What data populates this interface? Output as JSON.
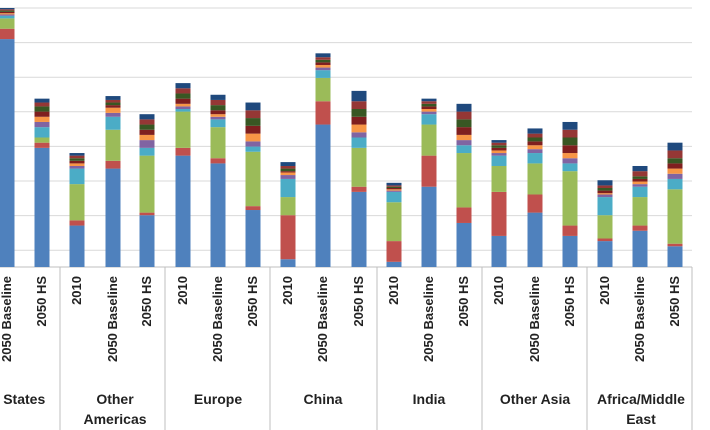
{
  "chart_data": {
    "type": "bar",
    "stacked": true,
    "title": "",
    "xlabel": "",
    "ylabel": "",
    "ylim": [
      0,
      100
    ],
    "grid": true,
    "legend": "none",
    "region_labels": [
      "d States",
      "Other Americas",
      "Europe",
      "China",
      "India",
      "Other Asia",
      "Africa/Middle East"
    ],
    "series_colors": [
      "#4f81bd",
      "#c0504d",
      "#9bbb59",
      "#4bacc6",
      "#8064a2",
      "#f79646",
      "#7f1f1f",
      "#385723",
      "#953735",
      "#1f497d"
    ],
    "groups": [
      {
        "region": "d States",
        "bars": [
          {
            "label": "2050 Baseline",
            "values": [
              88,
              4,
              4,
              1,
              0.5,
              0.5,
              0.5,
              0.5,
              0.5,
              0.5
            ]
          },
          {
            "label": "2050 HS",
            "values": [
              46,
              2,
              2,
              4,
              2,
              2,
              2,
              2,
              1.5,
              1.5
            ]
          }
        ]
      },
      {
        "region": "Other Americas",
        "bars": [
          {
            "label": "2010",
            "values": [
              16,
              2,
              14,
              6,
              1,
              1,
              1,
              1,
              1,
              1
            ]
          },
          {
            "label": "2050 Baseline",
            "values": [
              38,
              3,
              12,
              5,
              1.5,
              2,
              1,
              1,
              1,
              1.5
            ]
          },
          {
            "label": "2050 HS",
            "values": [
              20,
              1,
              22,
              3,
              3,
              2,
              2,
              2,
              2,
              2
            ]
          }
        ]
      },
      {
        "region": "Europe",
        "bars": [
          {
            "label": "2010",
            "values": [
              43,
              3,
              14,
              1,
              1,
              1,
              2,
              2,
              2,
              2
            ]
          },
          {
            "label": "2050 Baseline",
            "values": [
              40,
              2,
              12,
              3,
              1,
              1,
              1.5,
              2,
              2,
              2
            ]
          },
          {
            "label": "2050 HS",
            "values": [
              22,
              1.5,
              21,
              2,
              2,
              3,
              3,
              3,
              3,
              3
            ]
          }
        ]
      },
      {
        "region": "China",
        "bars": [
          {
            "label": "2010",
            "values": [
              3,
              17,
              7,
              7,
              1.5,
              1,
              0.5,
              1,
              1,
              1.5
            ]
          },
          {
            "label": "2050 Baseline",
            "values": [
              55,
              9,
              9,
              3,
              1,
              1,
              1,
              1,
              1,
              1.5
            ]
          },
          {
            "label": "2050 HS",
            "values": [
              29,
              2,
              15,
              4,
              2,
              3,
              3,
              3,
              3,
              4
            ]
          }
        ]
      },
      {
        "region": "India",
        "bars": [
          {
            "label": "2010",
            "values": [
              2,
              8,
              15,
              4,
              0.5,
              0.5,
              0.5,
              0.5,
              0.5,
              1
            ]
          },
          {
            "label": "2050 Baseline",
            "values": [
              31,
              12,
              12,
              4,
              1,
              1,
              1,
              1,
              1,
              1
            ]
          },
          {
            "label": "2050 HS",
            "values": [
              17,
              6,
              21,
              3,
              2,
              2,
              3,
              3,
              3,
              3
            ]
          }
        ]
      },
      {
        "region": "Other Asia",
        "bars": [
          {
            "label": "2010",
            "values": [
              12,
              17,
              10,
              4,
              1,
              1,
              1,
              1,
              1,
              1
            ]
          },
          {
            "label": "2050 Baseline",
            "values": [
              21,
              7,
              12,
              4,
              1.5,
              1.5,
              1.5,
              1.5,
              1.5,
              2
            ]
          },
          {
            "label": "2050 HS",
            "values": [
              12,
              4,
              21,
              3,
              2,
              2,
              3,
              3,
              3,
              3
            ]
          }
        ]
      },
      {
        "region": "Africa/Middle East",
        "bars": [
          {
            "label": "2010",
            "values": [
              10,
              1,
              9,
              7,
              1,
              0.5,
              1,
              1,
              1,
              2
            ]
          },
          {
            "label": "2050 Baseline",
            "values": [
              14,
              2,
              11,
              4,
              1,
              1,
              1,
              1,
              2,
              2
            ]
          },
          {
            "label": "2050 HS",
            "values": [
              8,
              1,
              21,
              4,
              2,
              2,
              2,
              2,
              3,
              3
            ]
          }
        ]
      }
    ]
  }
}
